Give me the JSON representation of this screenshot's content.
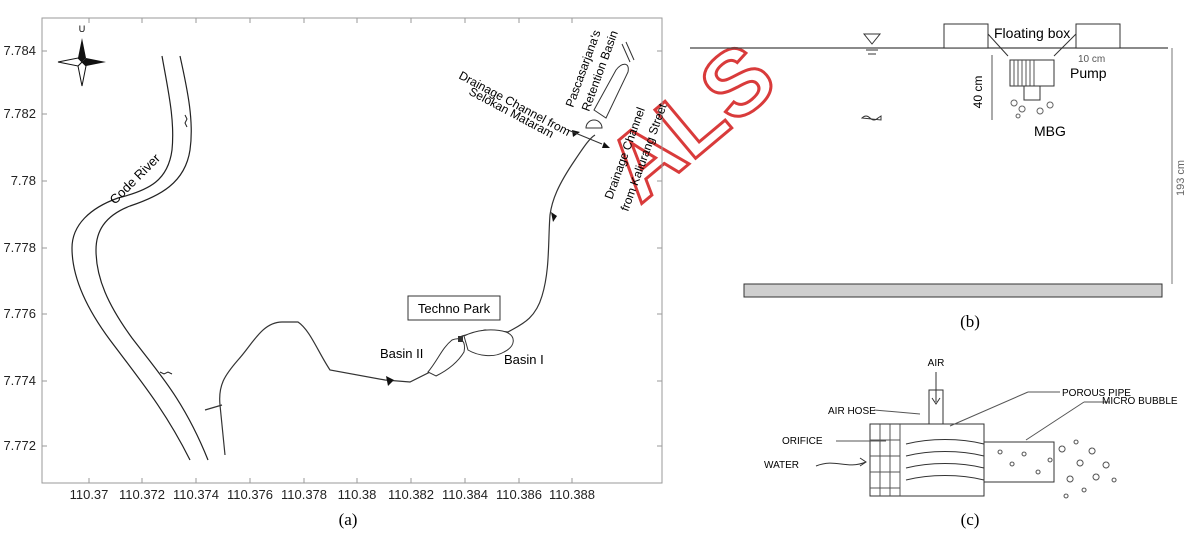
{
  "panel_a": {
    "caption": "(a)",
    "y_ticks": [
      "7.784",
      "7.782",
      "7.78",
      "7.778",
      "7.776",
      "7.774",
      "7.772"
    ],
    "x_ticks": [
      "110.37",
      "110.372",
      "110.374",
      "110.376",
      "110.378",
      "110.38",
      "110.382",
      "110.384",
      "110.386",
      "110.388"
    ],
    "north_label": "U",
    "labels": {
      "code_river": "Code River",
      "techno_park": "Techno Park",
      "basin_2": "Basin II",
      "basin_1": "Basin I",
      "retention_line1": "Pascasarjana's",
      "retention_line2": "Retention Basin",
      "selokan_line1": "Drainage Channel from",
      "selokan_line2": "Selokan Mataram",
      "kaliurang_line1": "Drainage Channel",
      "kaliurang_line2": "from Kaliurang Street"
    }
  },
  "panel_b": {
    "caption": "(b)",
    "floating_box": "Floating box",
    "dim_10": "10 cm",
    "dim_40": "40 cm",
    "pump": "Pump",
    "mbg": "MBG",
    "dim_193": "193 cm"
  },
  "panel_c": {
    "caption": "(c)",
    "air": "AIR",
    "air_hose": "AIR HOSE",
    "porous_pipe": "POROUS PIPE",
    "orifice": "ORIFICE",
    "micro_bubble": "MICRO BUBBLE",
    "water": "WATER"
  },
  "watermark": "ALS",
  "colors": {
    "watermark": "#d93b3b",
    "line": "#222222",
    "frame": "#999999"
  }
}
